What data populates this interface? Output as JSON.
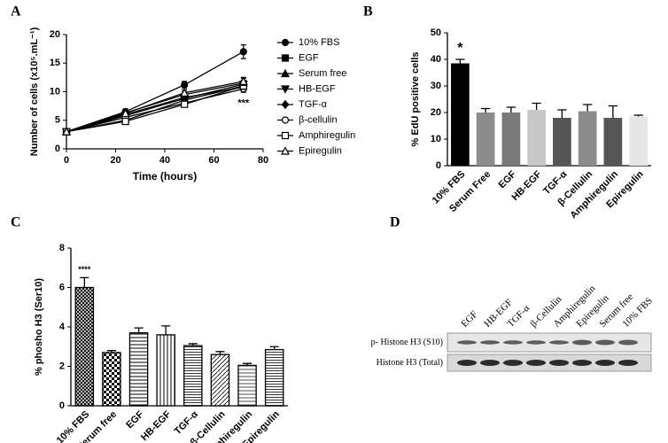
{
  "chart_data": [
    {
      "type": "line",
      "label": "A",
      "xlabel": "Time (hours)",
      "ylabel": "Number of cells (x10⁵.mL⁻¹)",
      "x": [
        0,
        24,
        48,
        72
      ],
      "xlim": [
        0,
        80
      ],
      "xticks": [
        0,
        20,
        40,
        60,
        80
      ],
      "ylim": [
        0,
        20
      ],
      "yticks": [
        0,
        5,
        10,
        15,
        20
      ],
      "series": [
        {
          "name": "10% FBS",
          "color": "#000000",
          "marker": "circle",
          "values": [
            3,
            6.5,
            11.2,
            17
          ],
          "errors": [
            0.2,
            0.5,
            0.6,
            1.2
          ]
        },
        {
          "name": "EGF",
          "color": "#000000",
          "marker": "square",
          "values": [
            3,
            5,
            8.5,
            11
          ],
          "errors": [
            0.2,
            0.4,
            0.5,
            0.6
          ]
        },
        {
          "name": "Serum free",
          "color": "#000000",
          "marker": "triangle",
          "values": [
            3,
            6.3,
            9.5,
            11.5
          ],
          "errors": [
            0.2,
            0.4,
            0.5,
            0.8
          ]
        },
        {
          "name": "HB-EGF",
          "color": "#000000",
          "marker": "triangle-down",
          "values": [
            3,
            5.8,
            8.8,
            11.3
          ],
          "errors": [
            0.2,
            0.4,
            0.5,
            0.7
          ]
        },
        {
          "name": "TGF-α",
          "color": "#000000",
          "marker": "diamond",
          "values": [
            3,
            6,
            9,
            10.8
          ],
          "errors": [
            0.2,
            0.4,
            0.5,
            0.6
          ]
        },
        {
          "name": "β-cellulin",
          "color": "#000000",
          "marker": "circle-open",
          "values": [
            3,
            5.5,
            8,
            10.5
          ],
          "errors": [
            0.2,
            0.4,
            0.5,
            0.6
          ]
        },
        {
          "name": "Amphiregulin",
          "color": "#000000",
          "marker": "square-open",
          "values": [
            3,
            4.8,
            7.8,
            11
          ],
          "errors": [
            0.2,
            0.4,
            0.5,
            0.6
          ]
        },
        {
          "name": "Epiregulin",
          "color": "#000000",
          "marker": "triangle-open",
          "values": [
            3,
            6.2,
            9.8,
            11.8
          ],
          "errors": [
            0.2,
            0.4,
            0.5,
            0.7
          ]
        }
      ],
      "annotations": [
        {
          "text": "***",
          "x": 72,
          "y": 8
        }
      ]
    },
    {
      "type": "bar",
      "label": "B",
      "ylabel": "% EdU positive cells",
      "categories": [
        "10% FBS",
        "Serum Free",
        "EGF",
        "HB-EGF",
        "TGF-α",
        "β-Cellulin",
        "Amphiregulin",
        "Epiregulin"
      ],
      "values": [
        38.5,
        20,
        20,
        21,
        18,
        20.5,
        18,
        18.5
      ],
      "errors": [
        1.5,
        1.5,
        2,
        2.5,
        3,
        2.5,
        4.5,
        0.5
      ],
      "colors": [
        "#000000",
        "#8c8c8c",
        "#7a7a7a",
        "#c8c8c8",
        "#555555",
        "#8c8c8c",
        "#555555",
        "#e6e6e6"
      ],
      "ylim": [
        0,
        50
      ],
      "yticks": [
        0,
        10,
        20,
        30,
        40,
        50
      ],
      "annotations": [
        {
          "text": "*",
          "category": "10% FBS"
        }
      ]
    },
    {
      "type": "bar",
      "label": "C",
      "ylabel": "% phosho H3 (Ser10)",
      "categories": [
        "10% FBS",
        "Serum free",
        "EGF",
        "HB-EGF",
        "TGF-α",
        "β-Cellulin",
        "Amphiregulin",
        "Epiregulin"
      ],
      "values": [
        6,
        2.7,
        3.7,
        3.6,
        3.05,
        2.6,
        2.05,
        2.85
      ],
      "errors": [
        0.5,
        0.1,
        0.25,
        0.45,
        0.1,
        0.15,
        0.1,
        0.15
      ],
      "patterned": true,
      "ylim": [
        0,
        8
      ],
      "yticks": [
        0,
        2,
        4,
        6,
        8
      ],
      "annotations": [
        {
          "text": "****",
          "category": "10% FBS"
        }
      ]
    }
  ],
  "blot": {
    "label": "D",
    "lanes": [
      "EGF",
      "HB-EGF",
      "TGF-α",
      "β-Cellulin",
      "Amphiregulin",
      "Epiregulin",
      "Serum free",
      "10% FBS"
    ],
    "rows": [
      "p- Histone H3 (S10)",
      "Histone H3 (Total)"
    ]
  }
}
